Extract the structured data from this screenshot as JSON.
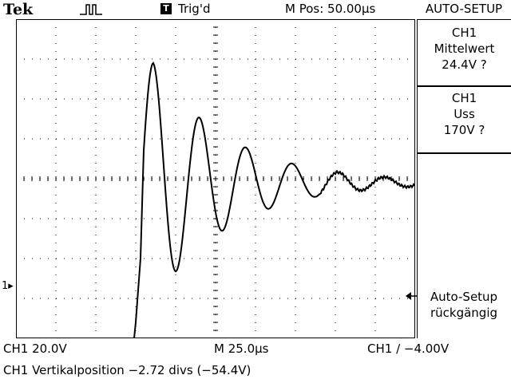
{
  "header": {
    "brand": "Tek",
    "trigger_badge": "T",
    "trigger_status": "Trig'd",
    "main_position": "M Pos: 50.00µs",
    "menu_title": "AUTO-SETUP"
  },
  "side_menu": {
    "mean": {
      "channel": "CH1",
      "label": "Mittelwert",
      "value": "24.4V ?"
    },
    "vpp": {
      "channel": "CH1",
      "label": "Uss",
      "value": "170V ?"
    },
    "undo": {
      "line1": "Auto-Setup",
      "line2": "rückgängig"
    }
  },
  "status": {
    "channel_scale": "CH1  20.0V",
    "timebase": "M 25.0µs",
    "trigger_info": "CH1 ∕ −4.00V",
    "message": "CH1 Vertikalposition −2.72 divs (−54.4V)"
  },
  "markers": {
    "channel_marker": "1"
  },
  "waveform": {
    "description_hidden": false,
    "divisions_x": 10,
    "divisions_y": 8,
    "trace_color": "#000000"
  }
}
